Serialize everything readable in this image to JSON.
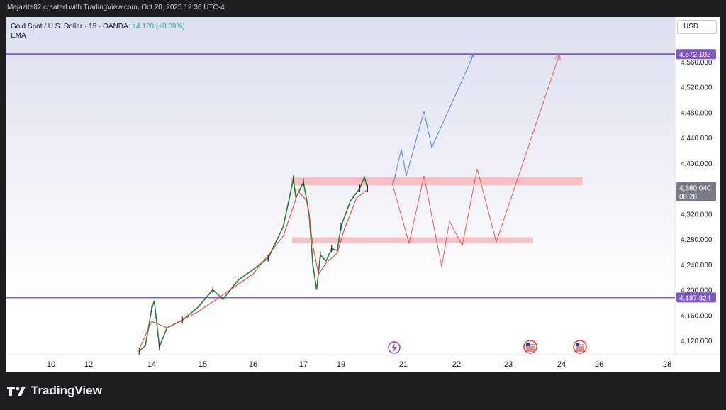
{
  "header": {
    "attribution": "Majazite82 created with TradingView.com, Oct 20, 2025 19:36 UTC-4"
  },
  "legend": {
    "symbol": "Gold Spot / U.S. Dollar · 15 · OANDA",
    "change": "+4.120 (+0.09%)",
    "indicator": "EMA"
  },
  "currency_button": "USD",
  "footer": {
    "brand": "TradingView"
  },
  "chart_data": {
    "type": "line",
    "title": "Gold Spot / U.S. Dollar · 15 · OANDA",
    "y_ticks": [
      "4,120.000",
      "4,160.000",
      "4,200.000",
      "4,240.000",
      "4,280.000",
      "4,320.000",
      "4,400.000",
      "4,440.000",
      "4,480.000",
      "4,520.000",
      "4,560.000"
    ],
    "y_tick_values": [
      4120,
      4160,
      4200,
      4240,
      4280,
      4320,
      4400,
      4440,
      4480,
      4520,
      4560
    ],
    "ylim": [
      4100,
      4600
    ],
    "x_ticks": [
      "10",
      "12",
      "14",
      "15",
      "16",
      "17",
      "19",
      "21",
      "22",
      "23",
      "24",
      "26",
      "28"
    ],
    "horizontal_levels": [
      {
        "label": "4,572.102",
        "value": 4572.102,
        "color": "#7e57c2"
      },
      {
        "label": "4,187.824",
        "value": 4187.824,
        "color": "#7e57c2"
      }
    ],
    "current_price": {
      "label": "4,360.040",
      "countdown": "08:28",
      "value": 4360.04
    },
    "zones": [
      {
        "from": 4365,
        "to": 4378,
        "color": "#f4b7bd"
      },
      {
        "from": 4274,
        "to": 4283,
        "color": "#f4b7bd"
      }
    ],
    "price_series": [
      {
        "x": "13.6",
        "y": 4103
      },
      {
        "x": "13.8",
        "y": 4112
      },
      {
        "x": "14.0",
        "y": 4170
      },
      {
        "x": "14.05",
        "y": 4183
      },
      {
        "x": "14.15",
        "y": 4110
      },
      {
        "x": "14.3",
        "y": 4140
      },
      {
        "x": "14.6",
        "y": 4152
      },
      {
        "x": "14.9",
        "y": 4172
      },
      {
        "x": "15.2",
        "y": 4200
      },
      {
        "x": "15.4",
        "y": 4185
      },
      {
        "x": "15.7",
        "y": 4215
      },
      {
        "x": "16.0",
        "y": 4232
      },
      {
        "x": "16.3",
        "y": 4250
      },
      {
        "x": "16.6",
        "y": 4300
      },
      {
        "x": "16.8",
        "y": 4375
      },
      {
        "x": "16.85",
        "y": 4345
      },
      {
        "x": "17.0",
        "y": 4370
      },
      {
        "x": "17.3",
        "y": 4320
      },
      {
        "x": "17.5",
        "y": 4240
      },
      {
        "x": "17.7",
        "y": 4200
      },
      {
        "x": "17.9",
        "y": 4255
      },
      {
        "x": "18.2",
        "y": 4245
      },
      {
        "x": "18.5",
        "y": 4265
      },
      {
        "x": "18.8",
        "y": 4262
      },
      {
        "x": "19.0",
        "y": 4300
      },
      {
        "x": "19.3",
        "y": 4340
      },
      {
        "x": "19.6",
        "y": 4360
      },
      {
        "x": "19.75",
        "y": 4378
      },
      {
        "x": "19.85",
        "y": 4360
      }
    ],
    "ema_series": [
      {
        "x": "13.6",
        "y": 4106
      },
      {
        "x": "14.0",
        "y": 4150
      },
      {
        "x": "14.3",
        "y": 4140
      },
      {
        "x": "14.9",
        "y": 4165
      },
      {
        "x": "15.4",
        "y": 4192
      },
      {
        "x": "16.0",
        "y": 4225
      },
      {
        "x": "16.6",
        "y": 4285
      },
      {
        "x": "16.9",
        "y": 4355
      },
      {
        "x": "17.2",
        "y": 4340
      },
      {
        "x": "17.5",
        "y": 4270
      },
      {
        "x": "17.8",
        "y": 4225
      },
      {
        "x": "18.2",
        "y": 4242
      },
      {
        "x": "18.8",
        "y": 4258
      },
      {
        "x": "19.1",
        "y": 4295
      },
      {
        "x": "19.5",
        "y": 4345
      },
      {
        "x": "19.85",
        "y": 4358
      }
    ],
    "projections": [
      {
        "name": "bullish",
        "color": "#5b7fe0",
        "points": [
          [
            555,
            258
          ],
          [
            566,
            210
          ],
          [
            573,
            248
          ],
          [
            598,
            157
          ],
          [
            609,
            208
          ],
          [
            668,
            77
          ]
        ]
      },
      {
        "name": "bearish",
        "color": "#ea5a5a",
        "points": [
          [
            553,
            258
          ],
          [
            577,
            343
          ],
          [
            598,
            248
          ],
          [
            623,
            376
          ],
          [
            634,
            312
          ],
          [
            652,
            346
          ],
          [
            673,
            238
          ],
          [
            700,
            341
          ],
          [
            789,
            77
          ]
        ]
      }
    ]
  }
}
